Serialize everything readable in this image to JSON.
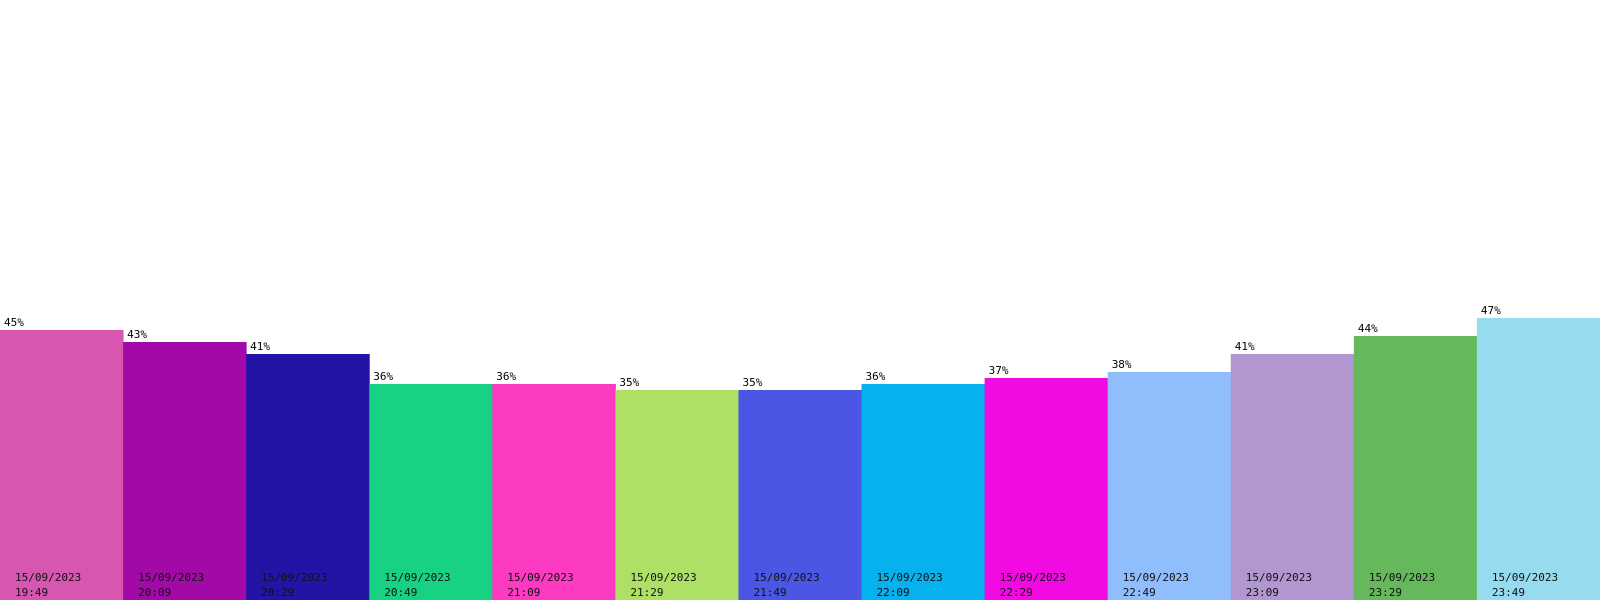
{
  "chart_data": {
    "type": "bar",
    "title": "",
    "xlabel": "",
    "ylabel": "",
    "categories": [
      "15/09/2023 19:49",
      "15/09/2023 20:09",
      "15/09/2023 20:29",
      "15/09/2023 20:49",
      "15/09/2023 21:09",
      "15/09/2023 21:29",
      "15/09/2023 21:49",
      "15/09/2023 22:09",
      "15/09/2023 22:29",
      "15/09/2023 22:49",
      "15/09/2023 23:09",
      "15/09/2023 23:29",
      "15/09/2023 23:49"
    ],
    "values": [
      45,
      43,
      41,
      36,
      36,
      35,
      35,
      36,
      37,
      38,
      41,
      44,
      47
    ],
    "value_labels": [
      "45%",
      "43%",
      "41%",
      "36%",
      "36%",
      "35%",
      "35%",
      "36%",
      "37%",
      "38%",
      "41%",
      "44%",
      "47%"
    ],
    "colors": [
      "#d656b0",
      "#a10aa6",
      "#2414a6",
      "#16d282",
      "#fc3ac2",
      "#aee066",
      "#4c56e4",
      "#05b2ef",
      "#f10ae2",
      "#90bdfc",
      "#b196d0",
      "#66b85c",
      "#96dcee"
    ],
    "ylim": [
      0,
      100
    ],
    "grid": false,
    "legend": "none"
  }
}
